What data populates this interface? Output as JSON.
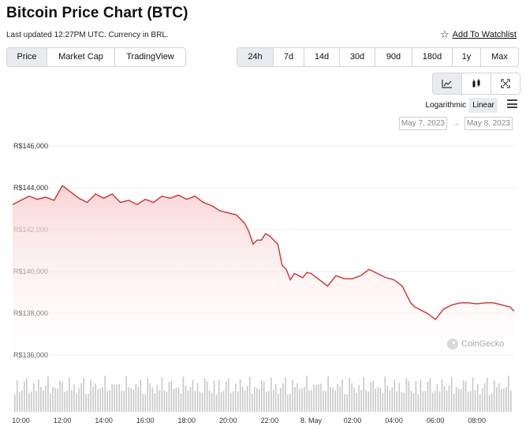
{
  "header": {
    "title": "Bitcoin Price Chart (BTC)",
    "subtitle": "Last updated 12:27PM UTC. Currency in BRL.",
    "watchlist_label": "Add To Watchlist"
  },
  "tabs": [
    {
      "label": "Price",
      "active": true
    },
    {
      "label": "Market Cap",
      "active": false
    },
    {
      "label": "TradingView",
      "active": false
    }
  ],
  "ranges": [
    {
      "label": "24h",
      "active": true
    },
    {
      "label": "7d",
      "active": false
    },
    {
      "label": "14d",
      "active": false
    },
    {
      "label": "30d",
      "active": false
    },
    {
      "label": "90d",
      "active": false
    },
    {
      "label": "180d",
      "active": false
    },
    {
      "label": "1y",
      "active": false
    },
    {
      "label": "Max",
      "active": false
    }
  ],
  "chart_types": [
    {
      "icon": "line-chart-icon",
      "active": true
    },
    {
      "icon": "candlestick-icon",
      "active": false
    },
    {
      "icon": "expand-icon",
      "active": false
    }
  ],
  "scale": {
    "logarithmic": "Logarithmic",
    "linear": "Linear",
    "active": "linear"
  },
  "date_range": {
    "from": "May 7, 2023",
    "to": "May 8, 2023",
    "separator": "→"
  },
  "watermark": "CoinGecko",
  "colors": {
    "line": "#d32f2f",
    "area_top": "#f8d3d3",
    "volume": "#c8c8c8",
    "active_bg": "#e9ebee"
  },
  "chart_data": {
    "type": "area",
    "title": "",
    "xlabel": "",
    "ylabel": "",
    "currency": "BRL",
    "ylim": [
      135000,
      147000
    ],
    "yticks": [
      "R$136,000",
      "R$138,000",
      "R$140,000",
      "R$142,000",
      "R$144,000",
      "R$146,000"
    ],
    "ytick_values": [
      136000,
      138000,
      140000,
      142000,
      144000,
      146000
    ],
    "xlim": [
      9.6,
      33.8
    ],
    "xtick_values": [
      10,
      12,
      14,
      16,
      18,
      20,
      22,
      24,
      26,
      28,
      30,
      32
    ],
    "xticks": [
      "10:00",
      "12:00",
      "14:00",
      "16:00",
      "18:00",
      "20:00",
      "22:00",
      "8. May",
      "02:00",
      "04:00",
      "06:00",
      "08:00"
    ],
    "series": [
      {
        "x": [
          9.6,
          10.0,
          10.4,
          10.8,
          11.2,
          11.6,
          12.0,
          12.4,
          12.8,
          13.2,
          13.6,
          14.0,
          14.4,
          14.8,
          15.2,
          15.6,
          16.0,
          16.4,
          16.8,
          17.2,
          17.6,
          18.0,
          18.4,
          18.8,
          19.2,
          19.6,
          20.0,
          20.4,
          20.8,
          21.0,
          21.2,
          21.4,
          21.6,
          21.8,
          22.0,
          22.2,
          22.4,
          22.6,
          22.8,
          23.0,
          23.2,
          23.4,
          23.6,
          23.8,
          24.0,
          24.4,
          24.8,
          25.2,
          25.6,
          26.0,
          26.4,
          26.8,
          27.2,
          27.6,
          28.0,
          28.4,
          28.6,
          28.8,
          29.0,
          29.2,
          29.6,
          30.0,
          30.4,
          30.8,
          31.2,
          31.6,
          32.0,
          32.4,
          32.8,
          33.2,
          33.6,
          33.8
        ],
        "values": [
          143200,
          143400,
          143600,
          143450,
          143550,
          143400,
          144100,
          143800,
          143500,
          143300,
          143700,
          143500,
          143700,
          143300,
          143400,
          143200,
          143450,
          143300,
          143600,
          143500,
          143650,
          143450,
          143600,
          143300,
          143150,
          142900,
          142800,
          142700,
          142300,
          141900,
          141300,
          141500,
          141500,
          141800,
          141700,
          141500,
          141300,
          140300,
          140100,
          139600,
          139900,
          139800,
          139700,
          139950,
          139900,
          139600,
          139300,
          139800,
          139650,
          139650,
          139800,
          140100,
          139900,
          139700,
          139600,
          139300,
          138900,
          138500,
          138300,
          138200,
          138000,
          137700,
          138200,
          138400,
          138500,
          138500,
          138450,
          138500,
          138500,
          138400,
          138300,
          138100
        ]
      }
    ]
  }
}
